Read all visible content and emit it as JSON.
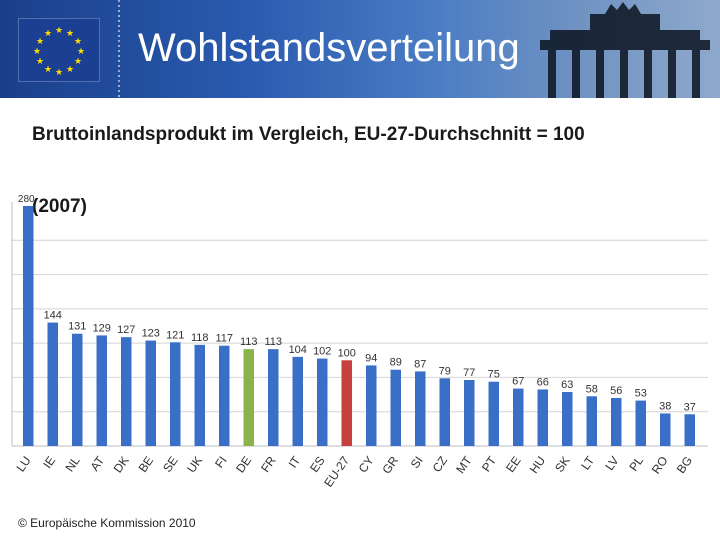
{
  "header": {
    "title": "Wohlstandsverteilung"
  },
  "subtitle": "Bruttoinlandsprodukt im Vergleich, EU-27-Durchschnitt = 100",
  "year": "(2007)",
  "footer": "© Europäische Kommission 2010",
  "colors": {
    "bar_default": "#3a6fc7",
    "bar_de": "#8ab44a",
    "bar_eu27": "#c8403d",
    "grid": "#d4d4d4"
  },
  "chart_data": {
    "type": "bar",
    "title": "Bruttoinlandsprodukt im Vergleich, EU-27-Durchschnitt = 100 (2007)",
    "xlabel": "",
    "ylabel": "",
    "ylim": [
      0,
      300
    ],
    "grid": true,
    "categories": [
      "LU",
      "IE",
      "NL",
      "AT",
      "DK",
      "BE",
      "SE",
      "UK",
      "FI",
      "DE",
      "FR",
      "IT",
      "ES",
      "EU-27",
      "CY",
      "GR",
      "SI",
      "CZ",
      "MT",
      "PT",
      "EE",
      "HU",
      "SK",
      "LT",
      "LV",
      "PL",
      "RO",
      "BG"
    ],
    "values": [
      280,
      144,
      131,
      129,
      127,
      123,
      121,
      118,
      117,
      113,
      113,
      104,
      102,
      100,
      94,
      89,
      87,
      79,
      77,
      75,
      67,
      66,
      63,
      58,
      56,
      53,
      38,
      37
    ],
    "highlight": {
      "DE": "bar_de",
      "EU-27": "bar_eu27"
    }
  }
}
